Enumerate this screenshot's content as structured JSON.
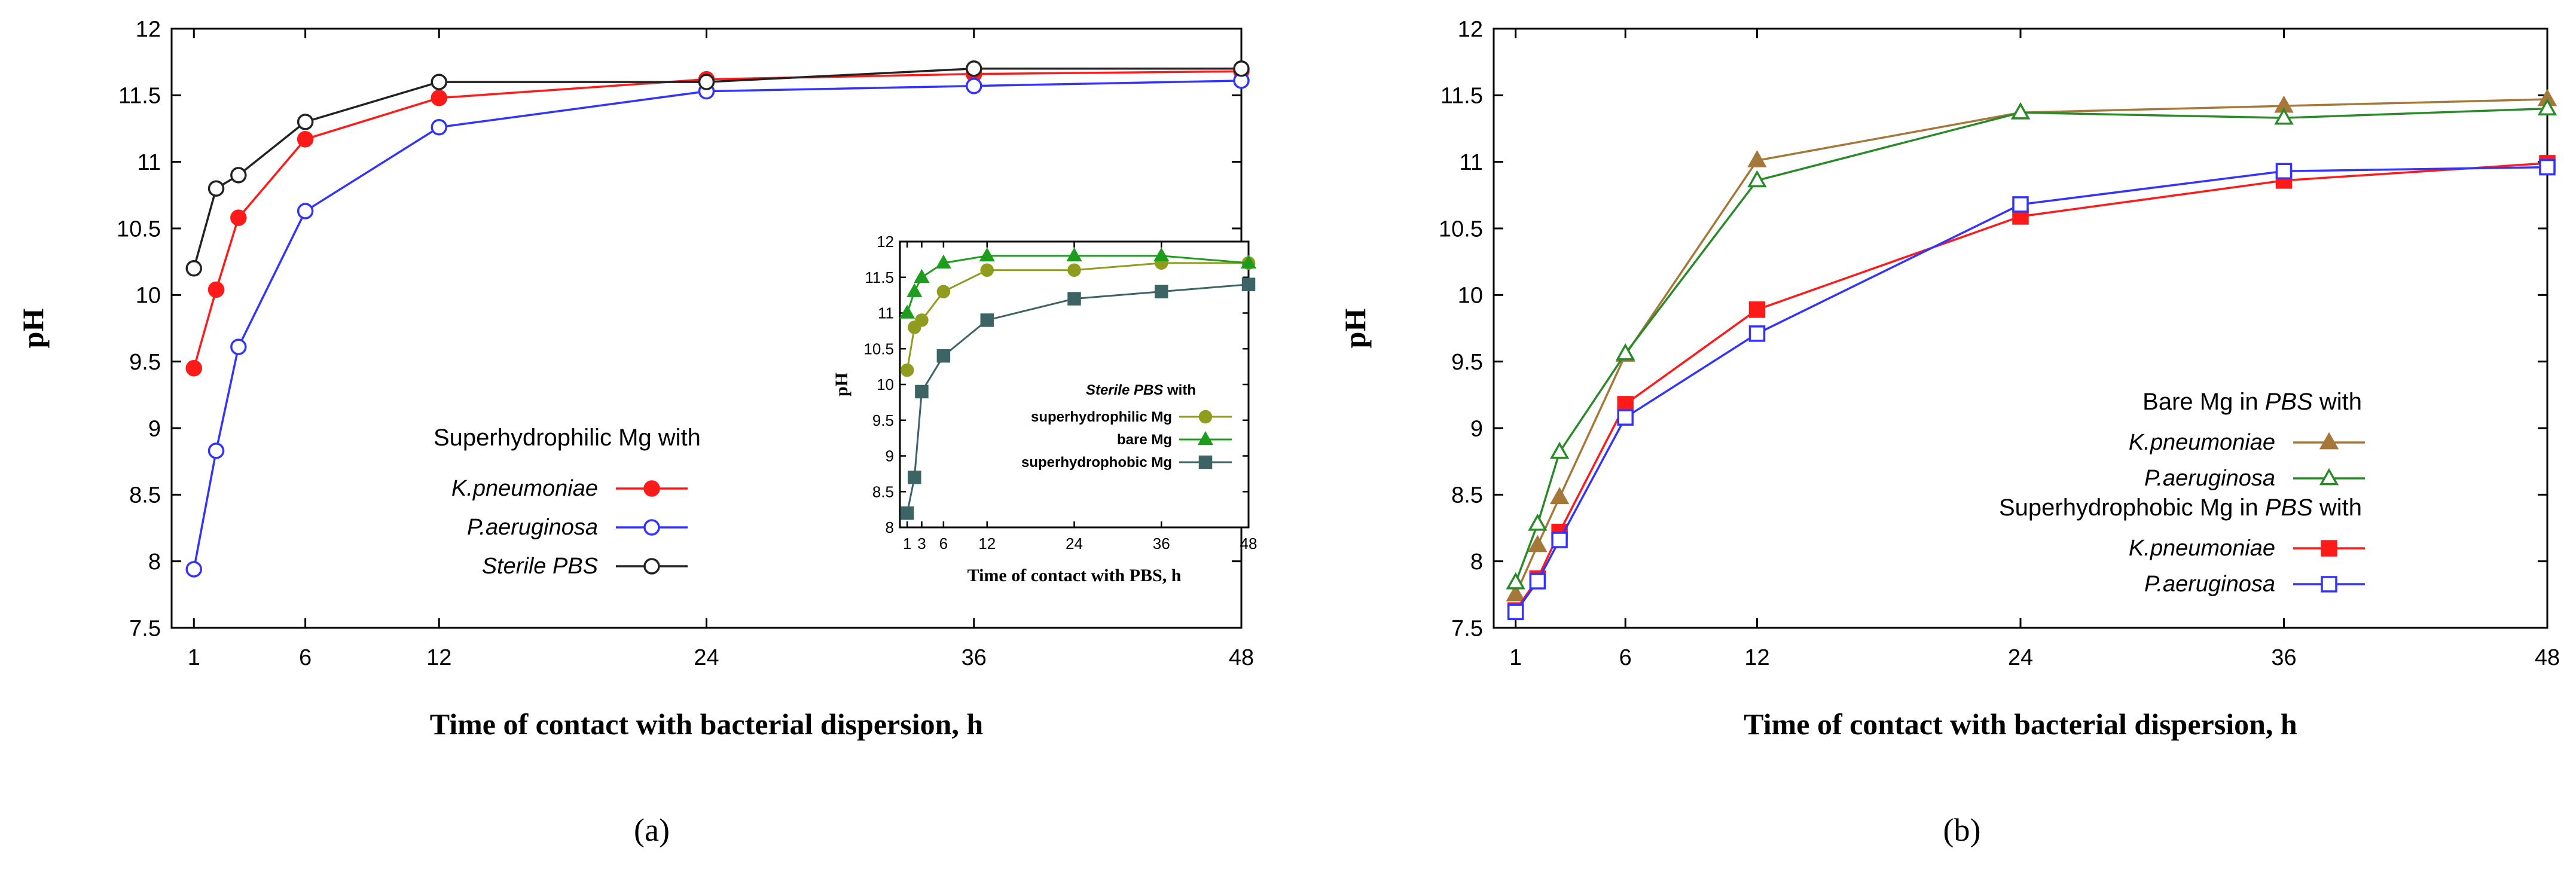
{
  "chart_data": [
    {
      "id": "a",
      "type": "line",
      "panel_label": "a",
      "xlabel": "Time of contact with bacterial dispersion, h",
      "ylabel": "pH",
      "xlim": [
        0,
        48
      ],
      "ylim": [
        7.5,
        12
      ],
      "xticks": [
        1,
        6,
        12,
        24,
        36,
        48
      ],
      "yticks": [
        7.5,
        8,
        8.5,
        9,
        9.5,
        10,
        10.5,
        11,
        11.5,
        12
      ],
      "legend": {
        "position": "bottom-left-center",
        "title": "Superhydrophilic Mg with"
      },
      "series": [
        {
          "name": "K.pneumoniae",
          "italic": true,
          "color": "#ff1a1a",
          "marker": "circle-filled",
          "x": [
            1,
            2,
            3,
            6,
            12,
            24,
            36,
            48
          ],
          "y": [
            9.45,
            10.04,
            10.58,
            11.17,
            11.48,
            11.62,
            11.66,
            11.68
          ]
        },
        {
          "name": "P.aeruginosa",
          "italic": true,
          "color": "#3333ff",
          "marker": "circle-open",
          "x": [
            1,
            2,
            3,
            6,
            12,
            24,
            36,
            48
          ],
          "y": [
            7.94,
            8.83,
            9.61,
            10.63,
            11.26,
            11.53,
            11.57,
            11.61
          ]
        },
        {
          "name": "Sterile PBS",
          "italic": true,
          "color": "#222222",
          "marker": "circle-open",
          "x": [
            1,
            2,
            3,
            6,
            12,
            24,
            36,
            48
          ],
          "y": [
            10.2,
            10.8,
            10.9,
            11.3,
            11.6,
            11.6,
            11.7,
            11.7
          ]
        }
      ],
      "inset": {
        "type": "line",
        "xlabel": "Time of contact with PBS, h",
        "ylabel": "pH",
        "xlim": [
          0,
          48
        ],
        "ylim": [
          8,
          12
        ],
        "xticks": [
          1,
          3,
          6,
          12,
          24,
          36,
          48
        ],
        "yticks": [
          8,
          8.5,
          9,
          9.5,
          10,
          10.5,
          11,
          11.5,
          12
        ],
        "legend": {
          "position": "bottom-right",
          "title_italic": "Sterile PBS",
          "title_rest": " with"
        },
        "series": [
          {
            "name": "superhydrophilic Mg",
            "color": "#8f9c1e",
            "marker": "circle-filled",
            "x": [
              1,
              2,
              3,
              6,
              12,
              24,
              36,
              48
            ],
            "y": [
              10.2,
              10.8,
              10.9,
              11.3,
              11.6,
              11.6,
              11.7,
              11.7
            ]
          },
          {
            "name": "bare Mg",
            "color": "#1e9c1e",
            "marker": "triangle-filled",
            "x": [
              1,
              2,
              3,
              6,
              12,
              24,
              36,
              48
            ],
            "y": [
              11.0,
              11.3,
              11.5,
              11.7,
              11.8,
              11.8,
              11.8,
              11.7
            ]
          },
          {
            "name": "superhydrophobic Mg",
            "color": "#3c6464",
            "marker": "square-filled",
            "x": [
              1,
              2,
              3,
              6,
              12,
              24,
              36,
              48
            ],
            "y": [
              8.2,
              8.7,
              9.9,
              10.4,
              10.9,
              11.2,
              11.3,
              11.4
            ]
          }
        ]
      }
    },
    {
      "id": "b",
      "type": "line",
      "panel_label": "b",
      "xlabel": "Time of contact with bacterial dispersion, h",
      "ylabel": "pH",
      "xlim": [
        0,
        48
      ],
      "ylim": [
        7.5,
        12
      ],
      "xticks": [
        1,
        6,
        12,
        24,
        36,
        48
      ],
      "yticks": [
        7.5,
        8,
        8.5,
        9,
        9.5,
        10,
        10.5,
        11,
        11.5,
        12
      ],
      "legend": {
        "position": "right-center",
        "groups": [
          {
            "title_pre": "Bare Mg in ",
            "title_italic": "PBS",
            "title_post": " with"
          },
          {
            "title_pre": "Superhydrophobic Mg in ",
            "title_italic": "PBS",
            "title_post": " with"
          }
        ]
      },
      "series": [
        {
          "name": "K.pneumoniae",
          "group": 0,
          "italic": true,
          "color": "#a5783a",
          "marker": "triangle-filled",
          "x": [
            1,
            2,
            3,
            6,
            12,
            24,
            36,
            48
          ],
          "y": [
            7.75,
            8.12,
            8.48,
            9.55,
            11.01,
            11.37,
            11.42,
            11.47
          ]
        },
        {
          "name": "P.aeruginosa",
          "group": 0,
          "italic": true,
          "color": "#2a8a2a",
          "marker": "triangle-open",
          "x": [
            1,
            2,
            3,
            6,
            12,
            24,
            36,
            48
          ],
          "y": [
            7.84,
            8.28,
            8.82,
            9.56,
            10.86,
            11.37,
            11.33,
            11.4
          ]
        },
        {
          "name": "K.pneumoniae",
          "group": 1,
          "italic": true,
          "color": "#ff1a1a",
          "marker": "square-filled",
          "x": [
            1,
            2,
            3,
            6,
            12,
            24,
            36,
            48
          ],
          "y": [
            7.63,
            7.87,
            8.22,
            9.18,
            9.89,
            10.59,
            10.86,
            10.99
          ]
        },
        {
          "name": "P.aeruginosa",
          "group": 1,
          "italic": true,
          "color": "#3333ff",
          "marker": "square-open",
          "x": [
            1,
            2,
            3,
            6,
            12,
            24,
            36,
            48
          ],
          "y": [
            7.62,
            7.85,
            8.16,
            9.08,
            9.71,
            10.68,
            10.93,
            10.96
          ]
        }
      ]
    }
  ]
}
